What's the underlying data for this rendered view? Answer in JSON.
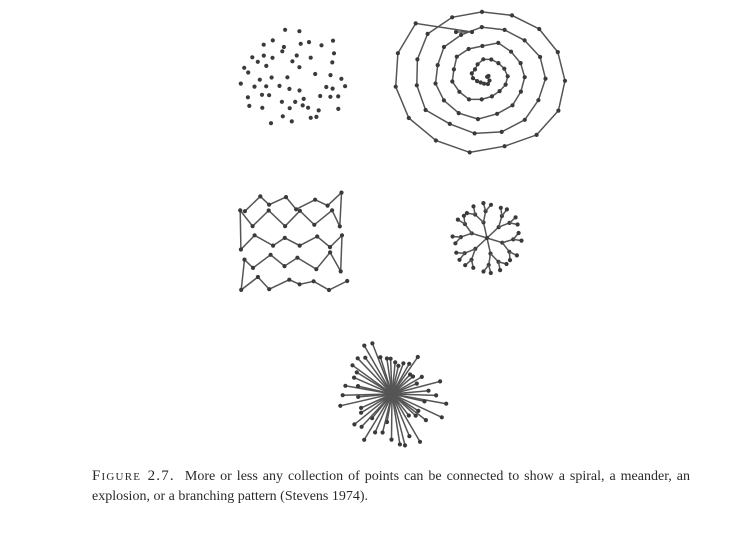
{
  "figure": {
    "label": "Figure 2.7.",
    "caption": "More or less any collection of points can be connected to show a spiral, a meander, an explosion, or a branching pattern (Stevens 1974)."
  },
  "colors": {
    "ink": "#555555",
    "dot": "#3a3a3a"
  }
}
